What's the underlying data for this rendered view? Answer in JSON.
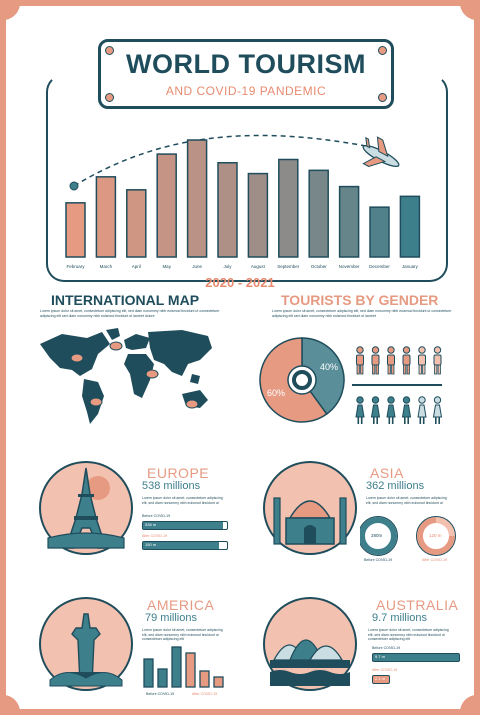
{
  "title": {
    "main": "WORLD TOURISM",
    "sub": "AND COVID-19 PANDEMIC",
    "years": "2020 - 2021"
  },
  "chart_data": {
    "type": "bar",
    "categories": [
      "February",
      "March",
      "April",
      "May",
      "June",
      "July",
      "August",
      "September",
      "October",
      "November",
      "December",
      "January"
    ],
    "values": [
      50,
      74,
      62,
      95,
      108,
      87,
      77,
      90,
      80,
      65,
      46,
      56
    ],
    "ylim": [
      0,
      120
    ],
    "colors": [
      "#e79a82",
      "#1f4d5c",
      "#3e7f8c"
    ]
  },
  "map": {
    "title": "INTERNATIONAL MAP",
    "text": "Lorem ipsum dolor sit amet, consectetuer adipiscing elit, sed diam nonummy nibh euismod tincidunt ut consectetuer adipiscing elit sed diam nonummy nibh euismod tincidunt ut laoreet dolore"
  },
  "gender": {
    "title": "TOURISTS BY GENDER",
    "text": "Lorem ipsum dolor sit amet, consectetuer adipiscing elit, sed diam nonummy nibh euismod tincidunt ut consectetuer adipiscing elit sed diam nonummy nibh euismod tincidunt ut laoreet",
    "share_a": "60%",
    "share_b": "40%",
    "value_a": 60,
    "value_b": 40
  },
  "europe": {
    "title": "EUROPE",
    "value": "538 millions",
    "text": "Lorem ipsum dolor sit amet, consectetuer adipiscing elit, sed diam nonummy nibh euismod tincidunt ut",
    "before_label": "Before COVID-19",
    "before_value": "538 m",
    "after_label": "After COVID-19",
    "after_value": "150 m"
  },
  "asia": {
    "title": "ASIA",
    "value": "362 millions",
    "text": "Lorem ipsum dolor sit amet, consectetuer adipiscing elit, sed diam nonummy nibh euismod tincidunt ut",
    "before_label": "Before COVID-19",
    "before_value": "280m",
    "after_label": "After COVID-19",
    "after_value": "120 m"
  },
  "america": {
    "title": "AMERICA",
    "value": "79 millions",
    "text": "Lorem ipsum dolor sit amet, consectetuer adipiscing elit, sed diam nonummy nibh euismod tincidunt ut consectetuer adipiscing elit",
    "before_label": "Before COVID-19",
    "after_label": "After COVID-19",
    "bars": [
      28,
      18,
      40,
      34,
      16,
      10
    ]
  },
  "australia": {
    "title": "AUSTRALIA",
    "value": "9.7 millions",
    "text": "Lorem ipsum dolor sit amet, consectetuer adipiscing elit, sed diam nonummy nibh euismod tincidunt ut consectetuer adipiscing elit",
    "before_label": "Before COVID-19",
    "before_value": "9.7 m",
    "after_label": "After COVID-19",
    "after_value": "2.1 m"
  }
}
